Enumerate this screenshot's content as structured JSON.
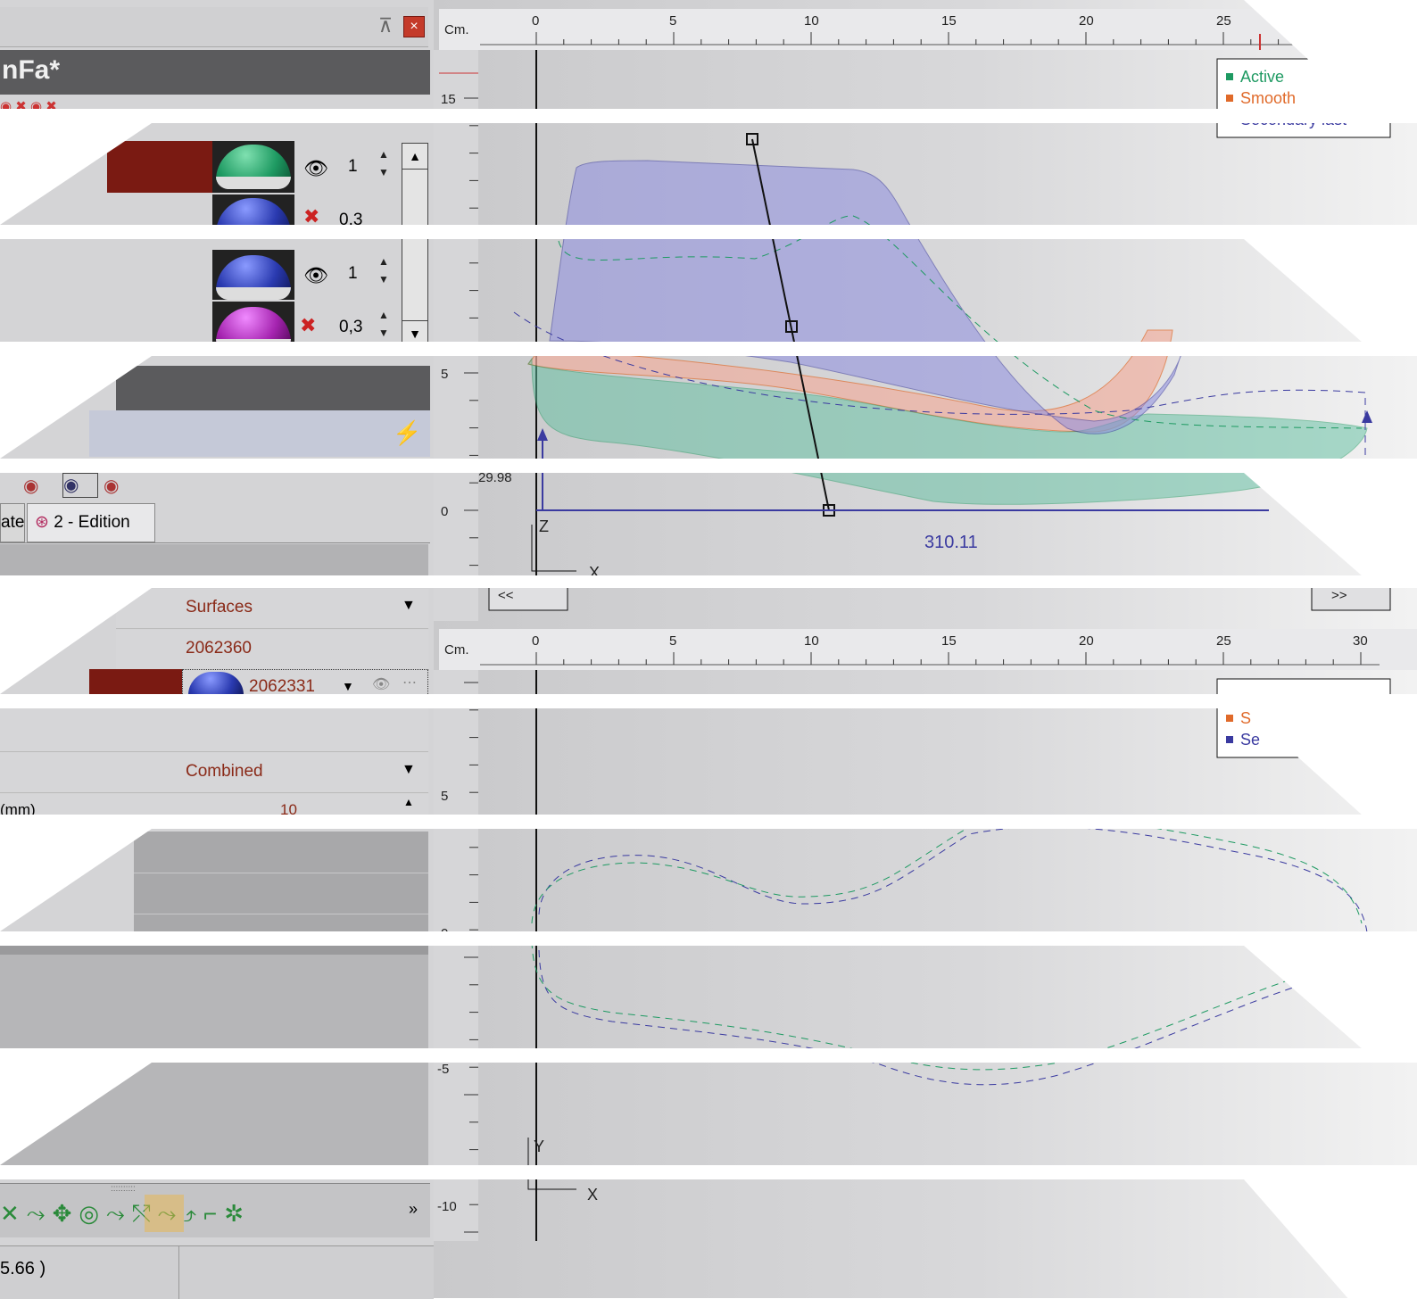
{
  "panel": {
    "title": "nFa*",
    "tab_create": "ate",
    "tab_edition": "2 - Edition"
  },
  "layers": [
    {
      "color": "#1e9a62",
      "visible": true,
      "value": "1"
    },
    {
      "color": "#2a3ab0",
      "visible": false,
      "value": "0,3"
    },
    {
      "color": "#2a3ab0",
      "visible": true,
      "value": "1"
    },
    {
      "color": "#a524b0",
      "visible": false,
      "value": "0,3"
    }
  ],
  "properties": {
    "display": "Surfaces",
    "id1": "2062360",
    "id2": "2062331",
    "mode": "Combined",
    "step_label": "(mm)",
    "step_value": "10"
  },
  "status": {
    "coords": "5.66 )"
  },
  "top_view": {
    "unit": "Cm.",
    "ticks": [
      "0",
      "5",
      "10",
      "15",
      "20",
      "25"
    ],
    "y_labels": [
      "15",
      "5",
      "0"
    ],
    "length_label": "310.11",
    "height_label": "29.98",
    "z_axis": "Z",
    "x_axis": "X",
    "nav_prev": "<<",
    "nav_next": ">>",
    "legend": {
      "active": "Active",
      "smooth": "Smooth",
      "secondary": "Secondary last"
    }
  },
  "bottom_view": {
    "unit": "Cm.",
    "ticks": [
      "0",
      "5",
      "10",
      "15",
      "20",
      "25",
      "30"
    ],
    "y_labels": [
      "5",
      "0",
      "-5",
      "-10"
    ],
    "y_axis": "Y",
    "x_axis": "X",
    "legend": {
      "smooth": "S",
      "secondary": "Se"
    }
  },
  "colors": {
    "active": "#1e9a62",
    "smooth": "#e06a2a",
    "secondary": "#3a3aa0",
    "selected": "#7a1a12"
  }
}
